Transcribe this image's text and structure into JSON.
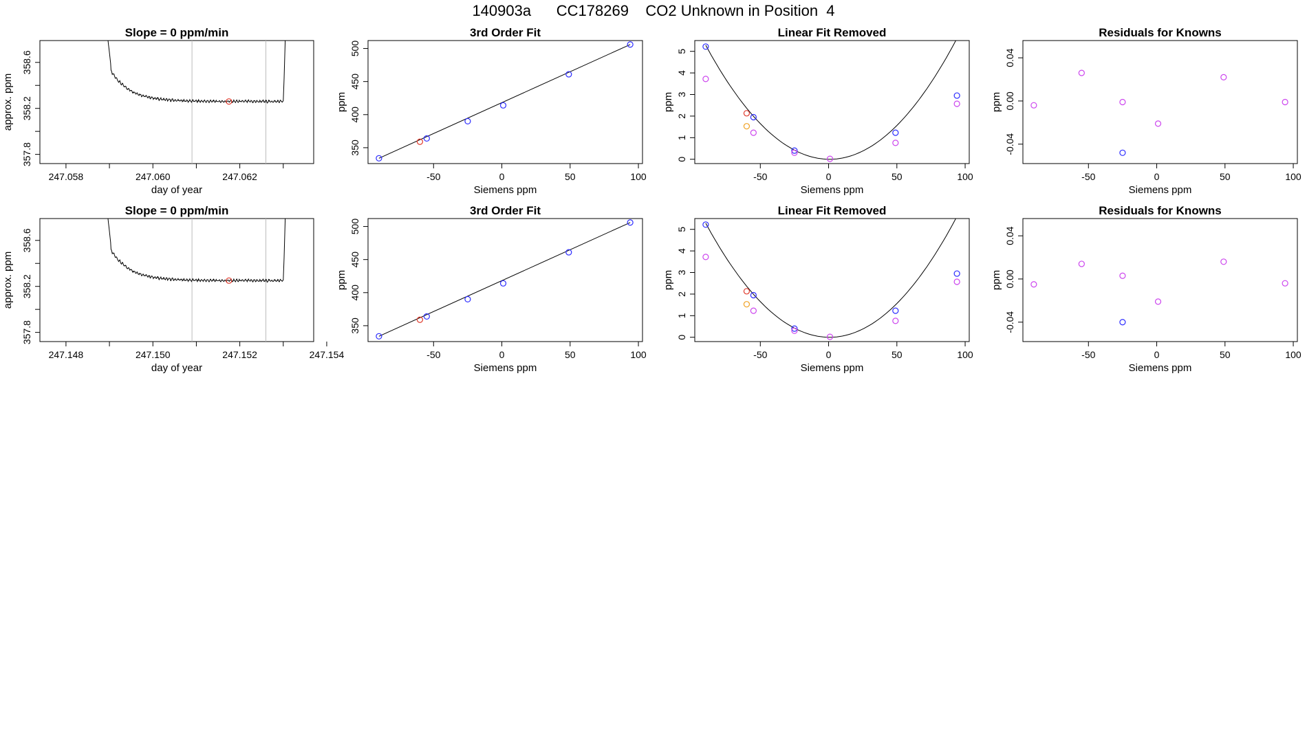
{
  "figure": {
    "title": "140903a      CC178269    CO2 Unknown in Position  4"
  },
  "chart_data": [
    {
      "id": "row1-slope",
      "type": "line",
      "title": "Slope =  0  ppm/min",
      "xlabel": "day of year",
      "ylabel": "approx. ppm",
      "xlim": [
        247.0574,
        247.0637
      ],
      "ylim": [
        357.72,
        358.79
      ],
      "xticks": [
        247.058,
        247.059,
        247.06,
        247.061,
        247.062,
        247.063
      ],
      "xtick_labels": [
        "247.058",
        "",
        "247.060",
        "",
        "247.062",
        ""
      ],
      "yticks": [
        357.8,
        358.0,
        358.2,
        358.4,
        358.6
      ],
      "ytick_labels": [
        "357.8",
        "",
        "358.2",
        "",
        "358.6"
      ],
      "vlines": [
        247.0609,
        247.0626
      ],
      "trace_start": 247.05895,
      "trace_end": 247.063,
      "trace_level": 358.26,
      "trace_peak": 358.85,
      "highlight_point": {
        "x": 247.06175,
        "y": 358.26,
        "color": "#e0392b"
      }
    },
    {
      "id": "row1-fit",
      "type": "scatter",
      "title": "3rd Order Fit",
      "xlabel": "Siemens ppm",
      "ylabel": "ppm",
      "xlim": [
        -98,
        103
      ],
      "ylim": [
        326,
        512
      ],
      "xticks": [
        -50,
        0,
        50,
        100
      ],
      "yticks": [
        350,
        400,
        450,
        500
      ],
      "line": {
        "x": [
          -90,
          94
        ],
        "y": [
          334,
          506
        ]
      },
      "series": [
        {
          "color": "#2b2bff",
          "points": [
            [
              -90,
              334
            ],
            [
              -55,
              364
            ],
            [
              -25,
              390
            ],
            [
              1,
              414
            ],
            [
              49,
              461
            ],
            [
              94,
              506
            ]
          ]
        },
        {
          "color": "#e0392b",
          "points": [
            [
              -60,
              359
            ]
          ]
        }
      ]
    },
    {
      "id": "row1-linear",
      "type": "scatter",
      "title": "Linear Fit Removed",
      "xlabel": "Siemens ppm",
      "ylabel": "ppm",
      "xlim": [
        -98,
        103
      ],
      "ylim": [
        -0.2,
        5.5
      ],
      "xticks": [
        -50,
        0,
        50,
        100
      ],
      "yticks": [
        0,
        1,
        2,
        3,
        4,
        5
      ],
      "curve": {
        "a": 0.000643,
        "b": -0.00085,
        "c": 0.0
      },
      "series": [
        {
          "color": "#2b2bff",
          "points": [
            [
              -90,
              5.22
            ],
            [
              -55,
              1.95
            ],
            [
              -25,
              0.4
            ],
            [
              49,
              1.23
            ],
            [
              94,
              2.95
            ]
          ]
        },
        {
          "color": "#cc44ee",
          "points": [
            [
              -90,
              3.72
            ],
            [
              -55,
              1.23
            ],
            [
              -25,
              0.3
            ],
            [
              1,
              0.02
            ],
            [
              49,
              0.76
            ],
            [
              94,
              2.57
            ]
          ]
        },
        {
          "color": "#e0392b",
          "points": [
            [
              -60,
              2.13
            ]
          ]
        },
        {
          "color": "#f0a020",
          "points": [
            [
              -60,
              1.53
            ]
          ]
        }
      ]
    },
    {
      "id": "row1-resid",
      "type": "scatter",
      "title": "Residuals for Knowns",
      "xlabel": "Siemens ppm",
      "ylabel": "ppm",
      "xlim": [
        -98,
        103
      ],
      "ylim": [
        -0.058,
        0.056
      ],
      "xticks": [
        -50,
        0,
        50,
        100
      ],
      "yticks": [
        -0.04,
        0.0,
        0.04
      ],
      "ytick_labels": [
        "-0.04",
        "0.00",
        "0.04"
      ],
      "series": [
        {
          "color": "#cc44ee",
          "points": [
            [
              -90,
              -0.004
            ],
            [
              -55,
              0.026
            ],
            [
              -25,
              -0.001
            ],
            [
              1,
              -0.021
            ],
            [
              49,
              0.022
            ],
            [
              94,
              -0.001
            ]
          ]
        },
        {
          "color": "#2b2bff",
          "points": [
            [
              -25,
              -0.048
            ]
          ]
        }
      ]
    },
    {
      "id": "row2-slope",
      "type": "line",
      "title": "Slope =  0  ppm/min",
      "xlabel": "day of year",
      "ylabel": "approx. ppm",
      "xlim": [
        247.1474,
        247.1537
      ],
      "ylim": [
        357.72,
        358.79
      ],
      "xticks": [
        247.148,
        247.149,
        247.15,
        247.151,
        247.152,
        247.153,
        247.154
      ],
      "xtick_labels": [
        "247.148",
        "",
        "247.150",
        "",
        "247.152",
        "",
        "247.154"
      ],
      "yticks": [
        357.8,
        358.0,
        358.2,
        358.4,
        358.6
      ],
      "ytick_labels": [
        "357.8",
        "",
        "358.2",
        "",
        "358.6"
      ],
      "vlines": [
        247.1509,
        247.1526
      ],
      "trace_start": 247.14895,
      "trace_end": 247.153,
      "trace_level": 358.25,
      "trace_peak": 358.85,
      "highlight_point": {
        "x": 247.15175,
        "y": 358.25,
        "color": "#e0392b"
      }
    },
    {
      "id": "row2-fit",
      "type": "scatter",
      "title": "3rd Order Fit",
      "xlabel": "Siemens ppm",
      "ylabel": "ppm",
      "xlim": [
        -98,
        103
      ],
      "ylim": [
        326,
        512
      ],
      "xticks": [
        -50,
        0,
        50,
        100
      ],
      "yticks": [
        350,
        400,
        450,
        500
      ],
      "line": {
        "x": [
          -90,
          94
        ],
        "y": [
          334,
          506
        ]
      },
      "series": [
        {
          "color": "#2b2bff",
          "points": [
            [
              -90,
              334
            ],
            [
              -55,
              364
            ],
            [
              -25,
              390
            ],
            [
              1,
              414
            ],
            [
              49,
              461
            ],
            [
              94,
              506
            ]
          ]
        },
        {
          "color": "#e0392b",
          "points": [
            [
              -60,
              359
            ]
          ]
        }
      ]
    },
    {
      "id": "row2-linear",
      "type": "scatter",
      "title": "Linear Fit Removed",
      "xlabel": "Siemens ppm",
      "ylabel": "ppm",
      "xlim": [
        -98,
        103
      ],
      "ylim": [
        -0.2,
        5.5
      ],
      "xticks": [
        -50,
        0,
        50,
        100
      ],
      "yticks": [
        0,
        1,
        2,
        3,
        4,
        5
      ],
      "curve": {
        "a": 0.000643,
        "b": -0.00085,
        "c": 0.0
      },
      "series": [
        {
          "color": "#2b2bff",
          "points": [
            [
              -90,
              5.22
            ],
            [
              -55,
              1.95
            ],
            [
              -25,
              0.4
            ],
            [
              49,
              1.23
            ],
            [
              94,
              2.95
            ]
          ]
        },
        {
          "color": "#cc44ee",
          "points": [
            [
              -90,
              3.72
            ],
            [
              -55,
              1.23
            ],
            [
              -25,
              0.3
            ],
            [
              1,
              0.02
            ],
            [
              49,
              0.76
            ],
            [
              94,
              2.57
            ]
          ]
        },
        {
          "color": "#e0392b",
          "points": [
            [
              -60,
              2.13
            ]
          ]
        },
        {
          "color": "#f0a020",
          "points": [
            [
              -60,
              1.53
            ]
          ]
        }
      ]
    },
    {
      "id": "row2-resid",
      "type": "scatter",
      "title": "Residuals for Knowns",
      "xlabel": "Siemens ppm",
      "ylabel": "ppm",
      "xlim": [
        -98,
        103
      ],
      "ylim": [
        -0.058,
        0.056
      ],
      "xticks": [
        -50,
        0,
        50,
        100
      ],
      "yticks": [
        -0.04,
        0.0,
        0.04
      ],
      "ytick_labels": [
        "-0.04",
        "0.00",
        "0.04"
      ],
      "series": [
        {
          "color": "#cc44ee",
          "points": [
            [
              -90,
              -0.005
            ],
            [
              -55,
              0.014
            ],
            [
              -25,
              0.003
            ],
            [
              1,
              -0.021
            ],
            [
              49,
              0.016
            ],
            [
              94,
              -0.004
            ]
          ]
        },
        {
          "color": "#2b2bff",
          "points": [
            [
              -25,
              -0.04
            ]
          ]
        }
      ]
    }
  ]
}
